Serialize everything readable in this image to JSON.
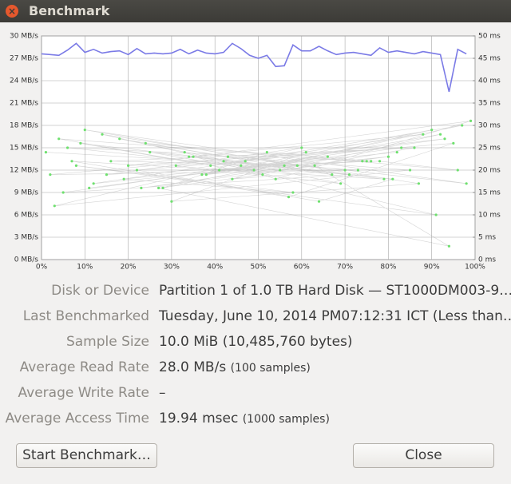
{
  "window": {
    "title": "Benchmark"
  },
  "chart_data": {
    "type": "line",
    "xlim": [
      0,
      100
    ],
    "xticks": [
      {
        "value": 0,
        "label": "0%"
      },
      {
        "value": 10,
        "label": "10%"
      },
      {
        "value": 20,
        "label": "20%"
      },
      {
        "value": 30,
        "label": "30%"
      },
      {
        "value": 40,
        "label": "40%"
      },
      {
        "value": 50,
        "label": "50%"
      },
      {
        "value": 60,
        "label": "60%"
      },
      {
        "value": 70,
        "label": "70%"
      },
      {
        "value": 80,
        "label": "80%"
      },
      {
        "value": 90,
        "label": "90%"
      },
      {
        "value": 100,
        "label": "100%"
      }
    ],
    "ylim": [
      0,
      30
    ],
    "yticks": [
      {
        "value": 0,
        "label": "0 MB/s"
      },
      {
        "value": 3,
        "label": "3 MB/s"
      },
      {
        "value": 6,
        "label": "6 MB/s"
      },
      {
        "value": 9,
        "label": "9 MB/s"
      },
      {
        "value": 12,
        "label": "12 MB/s"
      },
      {
        "value": 15,
        "label": "15 MB/s"
      },
      {
        "value": 18,
        "label": "18 MB/s"
      },
      {
        "value": 21,
        "label": "21 MB/s"
      },
      {
        "value": 24,
        "label": "24 MB/s"
      },
      {
        "value": 27,
        "label": "27 MB/s"
      },
      {
        "value": 30,
        "label": "30 MB/s"
      }
    ],
    "y2lim": [
      0,
      50
    ],
    "y2ticks": [
      {
        "value": 0,
        "label": "0 ms"
      },
      {
        "value": 5,
        "label": "5 ms"
      },
      {
        "value": 10,
        "label": "10 ms"
      },
      {
        "value": 15,
        "label": "15 ms"
      },
      {
        "value": 20,
        "label": "20 ms"
      },
      {
        "value": 25,
        "label": "25 ms"
      },
      {
        "value": 30,
        "label": "30 ms"
      },
      {
        "value": 35,
        "label": "35 ms"
      },
      {
        "value": 40,
        "label": "40 ms"
      },
      {
        "value": 45,
        "label": "45 ms"
      },
      {
        "value": 50,
        "label": "50 ms"
      }
    ],
    "grid": true,
    "series": [
      {
        "kind": "line",
        "color": "#7a7ae6",
        "x": [
          0,
          2,
          4,
          6,
          8,
          10,
          12,
          14,
          16,
          18,
          20,
          22,
          24,
          26,
          28,
          30,
          32,
          34,
          36,
          38,
          40,
          42,
          44,
          46,
          48,
          50,
          52,
          54,
          56,
          58,
          60,
          62,
          64,
          66,
          68,
          70,
          72,
          74,
          76,
          78,
          80,
          82,
          84,
          86,
          88,
          90,
          92,
          94,
          96,
          98
        ],
        "values": [
          27.6,
          27.5,
          27.4,
          28.1,
          29.0,
          27.8,
          28.2,
          27.7,
          27.9,
          28.0,
          27.5,
          28.3,
          27.6,
          27.7,
          27.6,
          27.7,
          28.2,
          27.6,
          28.1,
          27.7,
          27.6,
          27.8,
          29.0,
          28.3,
          27.4,
          27.0,
          27.4,
          25.9,
          26.0,
          28.8,
          28.0,
          28.0,
          28.6,
          28.0,
          27.5,
          27.7,
          27.8,
          27.6,
          27.4,
          28.4,
          27.8,
          28.0,
          27.8,
          27.6,
          27.9,
          27.7,
          27.5,
          22.5,
          28.2,
          27.6
        ]
      },
      {
        "kind": "scatter",
        "axis": "y2",
        "color": "#6ee06e",
        "x": [
          1,
          56,
          12,
          88,
          34,
          71,
          5,
          93,
          47,
          22,
          64,
          81,
          9,
          39,
          97,
          28,
          52,
          76,
          15,
          60,
          3,
          85,
          43,
          18,
          69,
          31,
          95,
          57,
          7,
          79,
          25,
          49,
          90,
          37,
          66,
          11,
          83,
          20,
          99,
          54,
          42,
          73,
          2,
          61,
          30,
          87,
          14,
          46,
          78,
          96,
          24,
          67,
          35,
          91,
          8,
          58,
          19,
          82,
          41,
          74,
          4,
          51,
          27,
          94,
          63,
          16,
          86,
          44,
          70,
          33,
          98,
          10,
          59,
          23,
          80,
          38,
          92,
          55,
          6,
          75
        ],
        "values": [
          24,
          21,
          17,
          28,
          23,
          19,
          15,
          27,
          22,
          20,
          13,
          18,
          26,
          21,
          30,
          16,
          24,
          22,
          19,
          25,
          12,
          20,
          23,
          27,
          17,
          21,
          26,
          14,
          22,
          18,
          24,
          20,
          29,
          19,
          23,
          16,
          25,
          21,
          31,
          18,
          22,
          20,
          19,
          24,
          13,
          17,
          28,
          21,
          22,
          20,
          26,
          19,
          23,
          10,
          21,
          15,
          18,
          24,
          20,
          22,
          27,
          19,
          16,
          3,
          21,
          22,
          25,
          18,
          20,
          24,
          17,
          29,
          21,
          16,
          23,
          19,
          28,
          20,
          25,
          22
        ]
      }
    ]
  },
  "info": {
    "rows": [
      {
        "label": "Disk or Device",
        "value": "Partition 1 of 1.0 TB Hard Disk — ST1000DM003-9…"
      },
      {
        "label": "Last Benchmarked",
        "value": "Tuesday, June 10, 2014 PM07:12:31 ICT (Less than…"
      },
      {
        "label": "Sample Size",
        "value": "10.0 MiB (10,485,760 bytes)"
      },
      {
        "label": "Average Read Rate",
        "value": "28.0 MB/s",
        "note": "(100 samples)"
      },
      {
        "label": "Average Write Rate",
        "value": "–"
      },
      {
        "label": "Average Access Time",
        "value": "19.94 msec",
        "note": "(1000 samples)"
      }
    ]
  },
  "buttons": {
    "start": "Start Benchmark…",
    "close": "Close"
  }
}
